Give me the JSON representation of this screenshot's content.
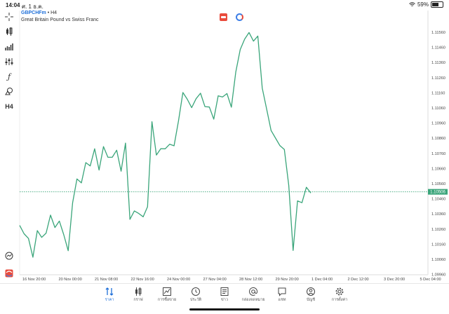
{
  "status": {
    "time": "14:04",
    "date": "ศ. 1 ธ.ค.",
    "wifi_icon": "wifi-icon",
    "battery": "59%",
    "battery_level": 0.59
  },
  "chart_header": {
    "symbol": "GBPCHFm",
    "timeframe": "• H4",
    "description": "Great Britain Pound vs Swiss Franc"
  },
  "toolbar_icons": [
    "crosshair-icon",
    "chart-type-icon",
    "indicators-icon",
    "settings-sliders-icon",
    "function-icon",
    "shapes-icon",
    "timeframe-icon",
    "history-icon",
    "app-logo-icon"
  ],
  "toolbar_timeframe": "H4",
  "chart_data": {
    "type": "line",
    "color": "#3aa57a",
    "current_price": 1.10506,
    "current_price_label": "1.10506",
    "y_ticks": [
      "1.11560",
      "1.11460",
      "1.11360",
      "1.11260",
      "1.11160",
      "1.11060",
      "1.10960",
      "1.10860",
      "1.10760",
      "1.10660",
      "1.10560",
      "1.10460",
      "1.10360",
      "1.10260",
      "1.10160",
      "1.10060",
      "1.09960"
    ],
    "ylim": [
      1.0991,
      1.1161
    ],
    "x_labels": [
      "16 Nov 20:00",
      "20 Nov 00:00",
      "21 Nov 08:00",
      "22 Nov 16:00",
      "24 Nov 00:00",
      "27 Nov 04:00",
      "28 Nov 12:00",
      "29 Nov 20:00",
      "1 Dec 04:00",
      "2 Dec 12:00",
      "3 Dec 20:00",
      "5 Dec 04:00"
    ],
    "values": [
      1.10284,
      1.10229,
      1.10198,
      1.10074,
      1.1025,
      1.10205,
      1.10233,
      1.10352,
      1.1027,
      1.10313,
      1.10222,
      1.10117,
      1.10433,
      1.10591,
      1.10565,
      1.10699,
      1.10677,
      1.1079,
      1.1065,
      1.10805,
      1.10734,
      1.10734,
      1.10781,
      1.10642,
      1.10828,
      1.10324,
      1.1038,
      1.10363,
      1.10341,
      1.10407,
      1.10969,
      1.10749,
      1.10791,
      1.1079,
      1.1082,
      1.1081,
      1.10974,
      1.11162,
      1.11118,
      1.11062,
      1.11121,
      1.11157,
      1.11069,
      1.11066,
      1.10986,
      1.1114,
      1.11132,
      1.11155,
      1.11065,
      1.11298,
      1.11445,
      1.11514,
      1.11558,
      1.11501,
      1.11535,
      1.11191,
      1.11052,
      1.10911,
      1.10861,
      1.10811,
      1.10786,
      1.10548,
      1.10119,
      1.10446,
      1.10434,
      1.10536,
      1.10498
    ]
  },
  "tabs": [
    {
      "label": "ราคา",
      "icon": "quotes-icon"
    },
    {
      "label": "กราฟ",
      "icon": "chart-icon"
    },
    {
      "label": "การซื้อขาย",
      "icon": "trade-icon"
    },
    {
      "label": "ประวัติ",
      "icon": "history-icon"
    },
    {
      "label": "ข่าว",
      "icon": "news-icon"
    },
    {
      "label": "กล่องจดหมาย",
      "icon": "mailbox-icon"
    },
    {
      "label": "แชท",
      "icon": "chat-icon"
    },
    {
      "label": "บัญชี",
      "icon": "account-icon"
    },
    {
      "label": "การตั้งค่า",
      "icon": "settings-icon"
    }
  ],
  "active_tab": "ราคา"
}
